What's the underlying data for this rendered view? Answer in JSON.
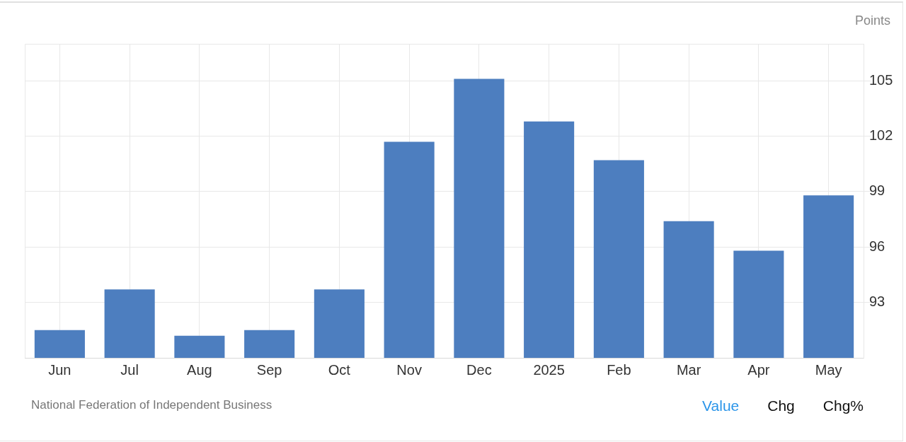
{
  "chart_data": {
    "type": "bar",
    "ylabel": "Points",
    "categories": [
      "Jun",
      "Jul",
      "Aug",
      "Sep",
      "Oct",
      "Nov",
      "Dec",
      "2025",
      "Feb",
      "Mar",
      "Apr",
      "May"
    ],
    "values": [
      91.5,
      93.7,
      91.2,
      91.5,
      93.7,
      101.7,
      105.1,
      102.8,
      100.7,
      97.4,
      95.8,
      98.8
    ],
    "color": "#4d7ebf",
    "ylim": [
      90,
      107
    ],
    "yticks": [
      93,
      96,
      99,
      102,
      105
    ],
    "grid": true,
    "annotations": [
      "National Federation of Independent Business",
      "Value",
      "Chg",
      "Chg%"
    ]
  }
}
